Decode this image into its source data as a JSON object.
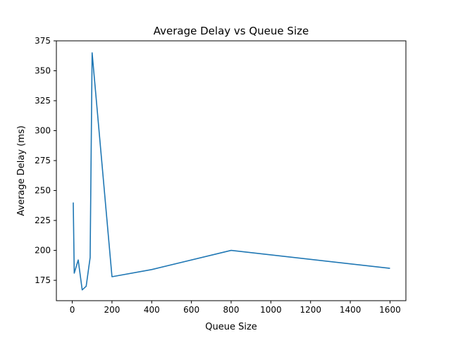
{
  "chart_data": {
    "type": "line",
    "title": "Average Delay vs Queue Size",
    "xlabel": "Queue Size",
    "ylabel": "Average Delay (ms)",
    "xlim": [
      -80,
      1680
    ],
    "ylim": [
      158,
      375
    ],
    "xticks": [
      0,
      200,
      400,
      600,
      800,
      1000,
      1200,
      1400,
      1600
    ],
    "yticks": [
      175,
      200,
      225,
      250,
      275,
      300,
      325,
      350,
      375
    ],
    "grid": false,
    "series": [
      {
        "color": "#1f77b4",
        "x": [
          5,
          10,
          30,
          50,
          70,
          90,
          100,
          200,
          400,
          800,
          1600
        ],
        "y": [
          240,
          181,
          192,
          167,
          170,
          194,
          365,
          178,
          184,
          200,
          185
        ]
      }
    ]
  }
}
